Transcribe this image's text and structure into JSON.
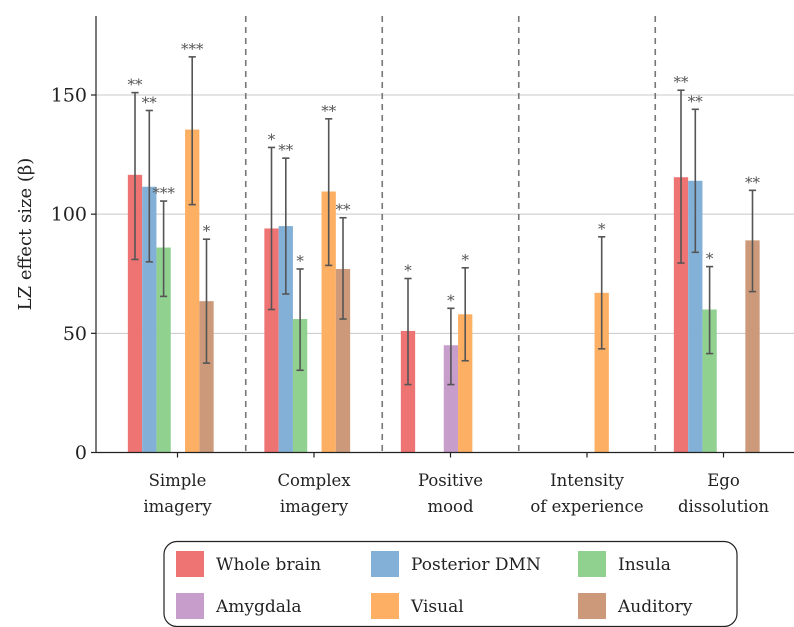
{
  "chart_data": {
    "type": "bar",
    "ylabel": "LZ effect size (β)",
    "xlabel": "",
    "ylim": [
      0,
      182
    ],
    "yticks": [
      0,
      50,
      100,
      150
    ],
    "grid": "horizontal",
    "legend_position": "bottom",
    "categories": [
      [
        "Simple",
        "imagery"
      ],
      [
        "Complex",
        "imagery"
      ],
      [
        "Positive",
        "mood"
      ],
      [
        "Intensity",
        "of experience"
      ],
      [
        "Ego",
        "dissolution"
      ]
    ],
    "series": [
      {
        "name": "Whole brain",
        "color": "#ee7373",
        "values": [
          116.5,
          94,
          51,
          null,
          115.5
        ],
        "err_low": [
          81,
          60,
          28.5,
          null,
          79.5
        ],
        "err_high": [
          151,
          128,
          73,
          null,
          152
        ],
        "sig": [
          "**",
          "*",
          "*",
          "",
          "**"
        ]
      },
      {
        "name": "Posterior DMN",
        "color": "#83b0d6",
        "values": [
          111.5,
          95,
          null,
          null,
          114
        ],
        "err_low": [
          80,
          66.5,
          null,
          null,
          84
        ],
        "err_high": [
          143.5,
          123.5,
          null,
          null,
          144
        ],
        "sig": [
          "**",
          "**",
          "",
          "",
          "**"
        ]
      },
      {
        "name": "Insula",
        "color": "#90d190",
        "values": [
          86,
          56,
          null,
          null,
          60
        ],
        "err_low": [
          65.5,
          34.5,
          null,
          null,
          41.5
        ],
        "err_high": [
          105.5,
          77,
          null,
          null,
          78
        ],
        "sig": [
          "***",
          "*",
          "",
          "",
          "*"
        ]
      },
      {
        "name": "Amygdala",
        "color": "#c79ecb",
        "values": [
          null,
          null,
          45,
          null,
          null
        ],
        "err_low": [
          null,
          null,
          28.5,
          null,
          null
        ],
        "err_high": [
          null,
          null,
          60.5,
          null,
          null
        ],
        "sig": [
          "",
          "",
          "*",
          "",
          ""
        ]
      },
      {
        "name": "Visual",
        "color": "#fdb063",
        "values": [
          135.5,
          109.5,
          58,
          67,
          null
        ],
        "err_low": [
          104,
          78.5,
          38.5,
          43.5,
          null
        ],
        "err_high": [
          166,
          140,
          77.5,
          90.5,
          null
        ],
        "sig": [
          "***",
          "**",
          "*",
          "*",
          ""
        ]
      },
      {
        "name": "Auditory",
        "color": "#cc9a7a",
        "values": [
          63.5,
          77,
          null,
          null,
          89
        ],
        "err_low": [
          37.5,
          56,
          null,
          null,
          67.5
        ],
        "err_high": [
          89.5,
          98.5,
          null,
          null,
          110
        ],
        "sig": [
          "*",
          "**",
          "",
          "",
          "**"
        ]
      }
    ]
  }
}
